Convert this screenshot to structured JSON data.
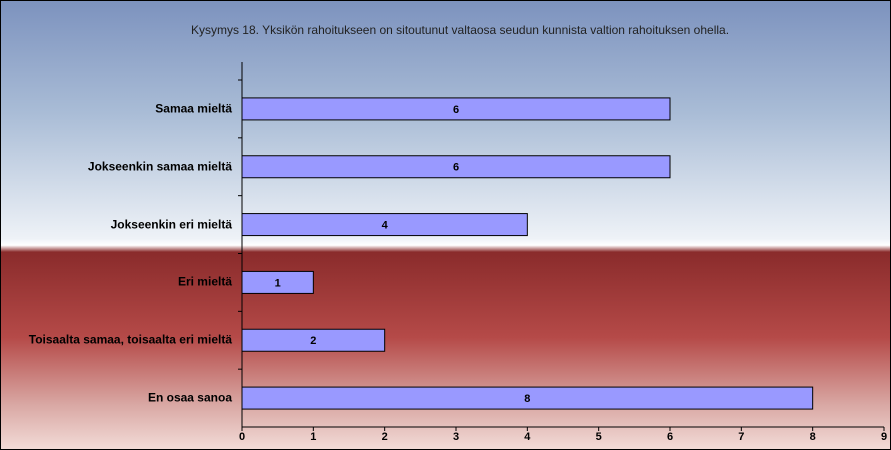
{
  "chart_data": {
    "type": "barh",
    "title": "Kysymys 18. Yksikön rahoitukseen on sitoutunut valtaosa seudun kunnista valtion rahoituksen ohella.",
    "categories": [
      "Samaa mieltä",
      "Jokseenkin samaa mieltä",
      "Jokseenkin eri mieltä",
      "Eri mieltä",
      "Toisaalta samaa, toisaalta eri mieltä",
      "En osaa sanoa"
    ],
    "values": [
      6,
      6,
      4,
      1,
      2,
      8
    ],
    "color": "#9999ff",
    "xlim": [
      0,
      9
    ],
    "xticks": [
      0,
      1,
      2,
      3,
      4,
      5,
      6,
      7,
      8,
      9
    ]
  }
}
